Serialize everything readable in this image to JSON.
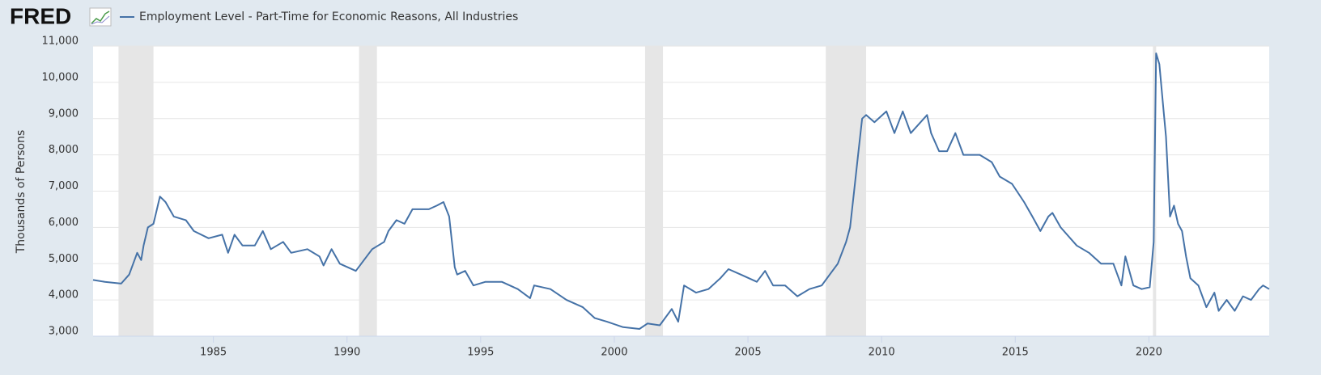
{
  "logo": "FRED",
  "chart_data": {
    "type": "line",
    "ylabel": "Thousands of Persons",
    "x": [
      1980.5,
      1980.94,
      1981.55,
      1981.85,
      1982.15,
      1982.3,
      1982.39,
      1982.55,
      1982.76,
      1983.0,
      1983.21,
      1983.52,
      1983.97,
      1984.27,
      1984.82,
      1985.33,
      1985.55,
      1985.79,
      1986.09,
      1986.55,
      1986.85,
      1987.15,
      1987.61,
      1987.91,
      1988.52,
      1988.97,
      1989.12,
      1989.42,
      1989.73,
      1990.33,
      1990.94,
      1991.39,
      1991.55,
      1991.85,
      1992.15,
      1992.45,
      1993.06,
      1993.36,
      1993.61,
      1993.82,
      1994.03,
      1994.12,
      1994.42,
      1994.73,
      1995.18,
      1995.79,
      1996.39,
      1996.85,
      1997.0,
      1997.61,
      1998.21,
      1998.82,
      1999.27,
      1999.73,
      2000.33,
      2000.94,
      2001.24,
      2001.7,
      2002.15,
      2002.39,
      2002.61,
      2003.06,
      2003.52,
      2003.97,
      2004.27,
      2004.73,
      2005.33,
      2005.64,
      2005.94,
      2006.39,
      2006.85,
      2007.3,
      2007.76,
      2008.06,
      2008.36,
      2008.67,
      2008.82,
      2008.97,
      2009.12,
      2009.27,
      2009.42,
      2009.73,
      2010.18,
      2010.48,
      2010.79,
      2011.09,
      2011.7,
      2011.85,
      2012.15,
      2012.45,
      2012.76,
      2013.06,
      2013.67,
      2014.12,
      2014.42,
      2014.88,
      2015.33,
      2015.64,
      2015.94,
      2016.24,
      2016.39,
      2016.7,
      2017.3,
      2017.76,
      2018.21,
      2018.67,
      2018.97,
      2019.12,
      2019.42,
      2019.73,
      2020.03,
      2020.18,
      2020.27,
      2020.39,
      2020.55,
      2020.64,
      2020.79,
      2020.94,
      2021.09,
      2021.24,
      2021.39,
      2021.55,
      2021.85,
      2022.15,
      2022.45,
      2022.61,
      2022.91,
      2023.21,
      2023.52,
      2023.82,
      2024.12,
      2024.27,
      2024.5
    ],
    "series": [
      {
        "name": "Employment Level - Part-Time for Economic Reasons, All Industries",
        "color": "#4572a7",
        "values": [
          4550,
          4500,
          4450,
          4700,
          5300,
          5100,
          5500,
          6000,
          6100,
          6850,
          6700,
          6300,
          6200,
          5900,
          5700,
          5800,
          5300,
          5800,
          5500,
          5500,
          5900,
          5400,
          5600,
          5300,
          5400,
          5200,
          4950,
          5400,
          5000,
          4800,
          5400,
          5600,
          5900,
          6200,
          6100,
          6500,
          6500,
          6600,
          6700,
          6300,
          4900,
          4700,
          4800,
          4400,
          4500,
          4500,
          4300,
          4050,
          4400,
          4300,
          4000,
          3800,
          3500,
          3400,
          3250,
          3200,
          3350,
          3300,
          3750,
          3400,
          4400,
          4200,
          4300,
          4600,
          4850,
          4700,
          4500,
          4800,
          4400,
          4400,
          4100,
          4300,
          4400,
          4700,
          5000,
          5600,
          6000,
          7000,
          8000,
          9000,
          9100,
          8900,
          9200,
          8600,
          9200,
          8600,
          9100,
          8600,
          8100,
          8100,
          8600,
          8000,
          8000,
          7800,
          7400,
          7200,
          6700,
          6300,
          5900,
          6300,
          6400,
          6000,
          5500,
          5300,
          5000,
          5000,
          4400,
          5200,
          4400,
          4300,
          4350,
          5600,
          10800,
          10500,
          9200,
          8500,
          6300,
          6600,
          6100,
          5900,
          5200,
          4600,
          4400,
          3800,
          4200,
          3700,
          4000,
          3700,
          4100,
          4000,
          4300,
          4400,
          4300
        ]
      }
    ],
    "recessions": [
      [
        1981.45,
        1982.76
      ],
      [
        1990.45,
        1991.12
      ],
      [
        2001.15,
        2001.82
      ],
      [
        2007.91,
        2009.42
      ],
      [
        2020.15,
        2020.27
      ]
    ],
    "xlim": [
      1980.5,
      2024.5
    ],
    "xticks": [
      1985,
      1990,
      1995,
      2000,
      2005,
      2010,
      2015,
      2020
    ],
    "ylim": [
      3000,
      11000
    ],
    "yticks": [
      {
        "value": 3000,
        "label": "3,000"
      },
      {
        "value": 4000,
        "label": "4,000"
      },
      {
        "value": 5000,
        "label": "5,000"
      },
      {
        "value": 6000,
        "label": "6,000"
      },
      {
        "value": 7000,
        "label": "7,000"
      },
      {
        "value": 8000,
        "label": "8,000"
      },
      {
        "value": 9000,
        "label": "9,000"
      },
      {
        "value": 10000,
        "label": "10,000"
      },
      {
        "value": 11000,
        "label": "11,000"
      }
    ],
    "grid": true
  }
}
